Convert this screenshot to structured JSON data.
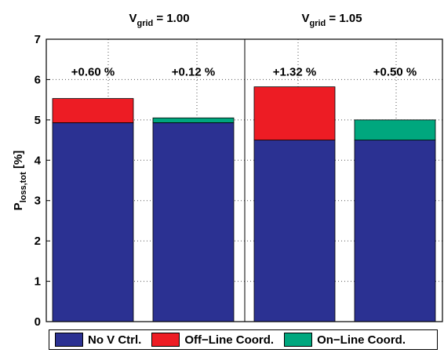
{
  "chart_data": {
    "type": "bar",
    "stacked": true,
    "groups": [
      {
        "title_main": "V",
        "title_sub": "grid",
        "title_rest": " = 1.00"
      },
      {
        "title_main": "V",
        "title_sub": "grid",
        "title_rest": " = 1.05"
      }
    ],
    "categories": [
      "1.00 Off-Line",
      "1.00 On-Line",
      "1.05 Off-Line",
      "1.05 On-Line"
    ],
    "series": [
      {
        "name": "No V Ctrl.",
        "color": "#2b3192",
        "values": [
          4.93,
          4.93,
          4.5,
          4.5
        ]
      },
      {
        "name": "Off−Line Coord.",
        "color": "#ed1c24",
        "values": [
          0.6,
          0,
          1.32,
          0
        ]
      },
      {
        "name": "On−Line Coord.",
        "color": "#00a77e",
        "values": [
          0,
          0.12,
          0,
          0.5
        ]
      }
    ],
    "bar_labels": [
      "+0.60 %",
      "+0.12 %",
      "+1.32 %",
      "+0.50 %"
    ],
    "ylabel_main": "P",
    "ylabel_sub": "loss,tot",
    "ylabel_rest": " [%]",
    "ylim": [
      0,
      7
    ],
    "yticks": [
      "0",
      "1",
      "2",
      "3",
      "4",
      "5",
      "6",
      "7"
    ],
    "grid": "dotted",
    "legend_position": "bottom"
  }
}
